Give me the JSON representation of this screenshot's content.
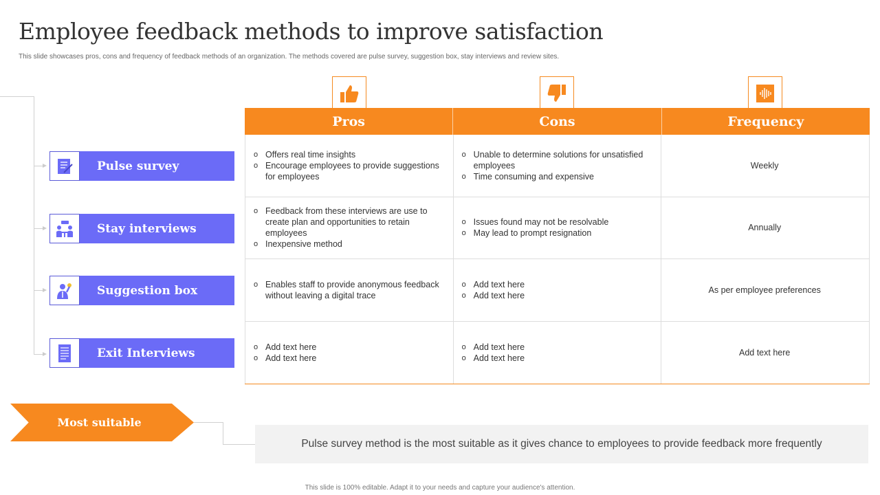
{
  "title": "Employee feedback methods to improve satisfaction",
  "subtitle": "This slide showcases pros, cons and frequency of feedback methods of an organization. The methods covered are pulse survey, suggestion box, stay interviews and review sites.",
  "colors": {
    "accent": "#f7891f",
    "method": "#6b6bf7"
  },
  "columns": [
    {
      "label": "Pros",
      "icon": "thumbs-up-icon"
    },
    {
      "label": "Cons",
      "icon": "thumbs-down-icon"
    },
    {
      "label": "Frequency",
      "icon": "sound-wave-icon"
    }
  ],
  "methods": [
    {
      "label": "Pulse survey",
      "icon": "survey-document-icon",
      "pros": [
        "Offers  real time insights",
        "Encourage  employees to provide suggestions for employees"
      ],
      "cons": [
        "Unable  to determine  solutions for unsatisfied employees",
        "Time consuming and expensive"
      ],
      "frequency": "Weekly"
    },
    {
      "label": "Stay interviews",
      "icon": "meeting-icon",
      "pros": [
        "Feedback from these interviews  are use to create plan and opportunities to retain employees",
        "Inexpensive  method"
      ],
      "cons": [
        "Issues found  may not be resolvable",
        "May lead to prompt resignation"
      ],
      "frequency": "Annually"
    },
    {
      "label": "Suggestion box",
      "icon": "idea-person-icon",
      "pros": [
        "Enables staff to provide  anonymous feedback without  leaving  a digital trace"
      ],
      "cons": [
        "Add text here",
        "Add text here"
      ],
      "frequency": "As per employee preferences"
    },
    {
      "label": "Exit Interviews",
      "icon": "document-icon",
      "pros": [
        "Add text here",
        "Add text here"
      ],
      "cons": [
        "Add text here",
        "Add text here"
      ],
      "frequency": "Add text here"
    }
  ],
  "most_suitable": {
    "label": "Most suitable",
    "text": "Pulse survey  method is the most suitable as it gives chance to employees to provide feedback more frequently"
  },
  "footer": "This slide is 100% editable.  Adapt it to your needs and capture your audience's attention."
}
